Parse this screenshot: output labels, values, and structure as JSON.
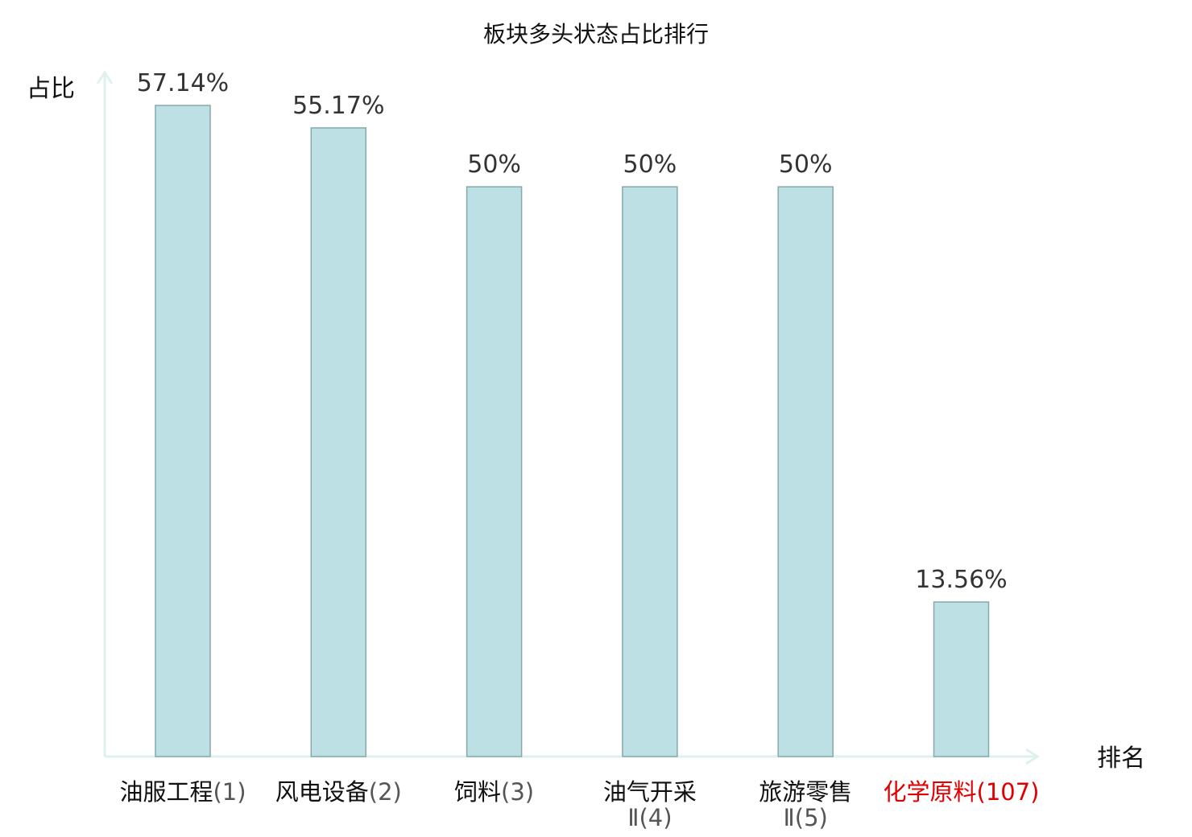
{
  "chart_data": {
    "type": "bar",
    "title": "板块多头状态占比排行",
    "xlabel": "排名",
    "ylabel": "占比",
    "ylim": [
      0,
      60
    ],
    "grid": false,
    "categories": [
      {
        "name": "油服工程",
        "rank": "(1)",
        "highlight": false
      },
      {
        "name": "风电设备",
        "rank": "(2)",
        "highlight": false
      },
      {
        "name": "饲料",
        "rank": "(3)",
        "highlight": false
      },
      {
        "name": "油气开采",
        "name_line2": "Ⅱ",
        "rank": "(4)",
        "highlight": false
      },
      {
        "name": "旅游零售",
        "name_line2": "Ⅱ",
        "rank": "(5)",
        "highlight": false
      },
      {
        "name": "化学原料",
        "rank": "(107)",
        "highlight": true
      }
    ],
    "values": [
      57.14,
      55.17,
      50,
      50,
      50,
      13.56
    ],
    "value_labels": [
      "57.14%",
      "55.17%",
      "50%",
      "50%",
      "50%",
      "13.56%"
    ],
    "colors": {
      "bar_fill": "#bce0e3",
      "bar_stroke": "#86a9ab",
      "axis": "#dff1ef",
      "highlight": "#e00000",
      "rank_gray": "#555555",
      "value_text": "#333333"
    }
  }
}
